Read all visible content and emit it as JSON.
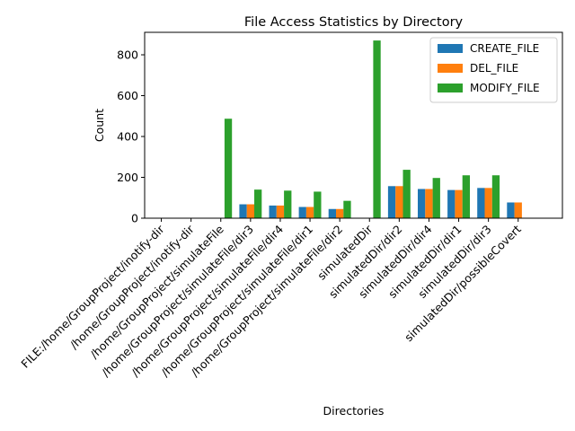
{
  "chart_data": {
    "type": "bar",
    "title": "File Access Statistics by Directory",
    "xlabel": "Directories",
    "ylabel": "Count",
    "ylim": [
      0,
      910
    ],
    "yticks": [
      0,
      200,
      400,
      600,
      800
    ],
    "legend_position": "top-right",
    "grid": false,
    "categories": [
      "FILE:/home/GroupProject/inotify-dir",
      "/home/GroupProject/inotify-dir",
      "/home/GroupProject/simulateFile",
      "/home/GroupProject/simulateFile/dir3",
      "/home/GroupProject/simulateFile/dir4",
      "/home/GroupProject/simulateFile/dir1",
      "/home/GroupProject/simulateFile/dir2",
      "simulatedDir",
      "simulatedDir/dir2",
      "simulatedDir/dir4",
      "simulatedDir/dir1",
      "simulatedDir/dir3",
      "simulatedDir/possibleCovert"
    ],
    "series": [
      {
        "name": "CREATE_FILE",
        "color": "#1f77b4",
        "values": [
          0,
          0,
          0,
          68,
          62,
          55,
          45,
          0,
          157,
          143,
          138,
          148,
          77
        ]
      },
      {
        "name": "DEL_FILE",
        "color": "#ff7f0e",
        "values": [
          0,
          0,
          0,
          68,
          62,
          55,
          45,
          0,
          157,
          143,
          138,
          148,
          77
        ]
      },
      {
        "name": "MODIFY_FILE",
        "color": "#2ca02c",
        "values": [
          0,
          0,
          487,
          140,
          135,
          130,
          85,
          870,
          237,
          197,
          210,
          210,
          0
        ]
      }
    ]
  }
}
